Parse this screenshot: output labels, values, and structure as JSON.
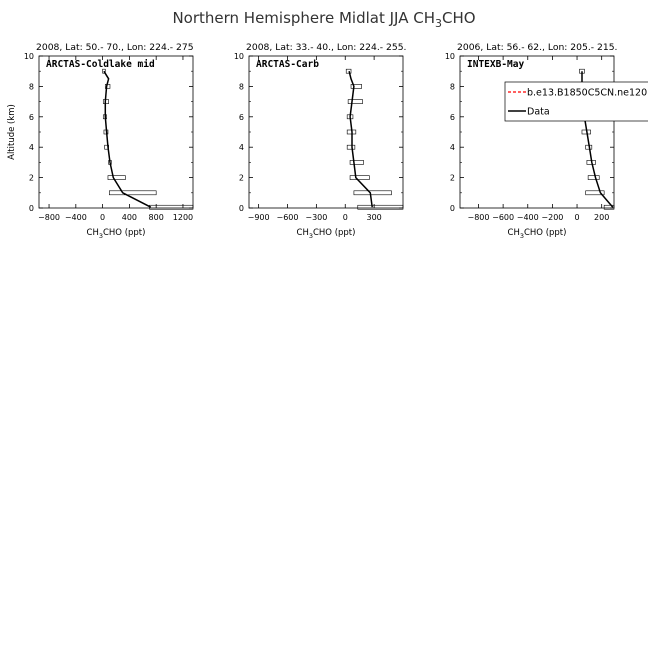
{
  "figure": {
    "title_main": "Northern Hemisphere Midlat JJA CH",
    "title_sub": "3",
    "title_tail": "CHO"
  },
  "legend": {
    "model_label": "b.e13.B1850C5CN.ne120",
    "data_label": "Data",
    "model_color": "#ff0000",
    "data_color": "#000000"
  },
  "chart_data": [
    {
      "type": "line",
      "header": "2008, Lat:  50.- 70., Lon: 224.- 275",
      "label": "ARCTAS-Coldlake mid",
      "ylabel": "Altitude (km)",
      "xlabel_main": "CH",
      "xlabel_sub": "3",
      "xlabel_tail": "CHO (ppt)",
      "xlim": [
        -950,
        1350
      ],
      "ylim": [
        0,
        10
      ],
      "xticks": [
        -800,
        -400,
        0,
        400,
        800,
        1200
      ],
      "xtick_labels": [
        "−800",
        "−400",
        "0",
        "400",
        "800",
        "1200"
      ],
      "yticks": [
        0,
        2,
        4,
        6,
        8,
        10
      ],
      "series": [
        {
          "name": "Data",
          "x": [
            720,
            300,
            160,
            110,
            80,
            60,
            40,
            40,
            60,
            90,
            20
          ],
          "y": [
            0.05,
            1,
            2,
            3,
            4,
            5,
            6,
            7,
            8,
            8.5,
            9
          ]
        }
      ],
      "boxes": [
        {
          "y": 0.05,
          "xmin": 700,
          "xmax": 1350
        },
        {
          "y": 1,
          "xmin": 100,
          "xmax": 800
        },
        {
          "y": 2,
          "xmin": 80,
          "xmax": 340
        },
        {
          "y": 3,
          "xmin": 90,
          "xmax": 130
        },
        {
          "y": 4,
          "xmin": 30,
          "xmax": 90
        },
        {
          "y": 5,
          "xmin": 20,
          "xmax": 80
        },
        {
          "y": 6,
          "xmin": 10,
          "xmax": 60
        },
        {
          "y": 7,
          "xmin": 10,
          "xmax": 90
        },
        {
          "y": 8,
          "xmin": 40,
          "xmax": 110
        },
        {
          "y": 9,
          "xmin": 0,
          "xmax": 40
        }
      ]
    },
    {
      "type": "line",
      "header": "2008, Lat:  33.- 40., Lon: 224.- 255.",
      "label": "ARCTAS-Carb",
      "ylabel": "",
      "xlabel_main": "CH",
      "xlabel_sub": "3",
      "xlabel_tail": "CHO (ppt)",
      "xlim": [
        -1000,
        600
      ],
      "ylim": [
        0,
        10
      ],
      "xticks": [
        -900,
        -600,
        -300,
        0,
        300
      ],
      "xtick_labels": [
        "−900",
        "−600",
        "−300",
        "0",
        "300"
      ],
      "yticks": [
        0,
        2,
        4,
        6,
        8,
        10
      ],
      "series": [
        {
          "name": "Data",
          "x": [
            280,
            260,
            110,
            90,
            70,
            70,
            50,
            70,
            90,
            60,
            40
          ],
          "y": [
            0.05,
            1,
            2,
            3,
            4,
            5,
            6,
            7,
            8,
            8.5,
            9
          ]
        }
      ],
      "boxes": [
        {
          "y": 0.05,
          "xmin": 130,
          "xmax": 600
        },
        {
          "y": 1,
          "xmin": 90,
          "xmax": 480
        },
        {
          "y": 2,
          "xmin": 50,
          "xmax": 250
        },
        {
          "y": 3,
          "xmin": 50,
          "xmax": 190
        },
        {
          "y": 4,
          "xmin": 20,
          "xmax": 100
        },
        {
          "y": 5,
          "xmin": 20,
          "xmax": 110
        },
        {
          "y": 6,
          "xmin": 20,
          "xmax": 80
        },
        {
          "y": 7,
          "xmin": 30,
          "xmax": 180
        },
        {
          "y": 8,
          "xmin": 60,
          "xmax": 170
        },
        {
          "y": 9,
          "xmin": 10,
          "xmax": 60
        }
      ]
    },
    {
      "type": "line",
      "header": "2006, Lat: 56.- 62., Lon: 205.- 215.",
      "label": "INTEXB-May",
      "ylabel": "",
      "xlabel_main": "CH",
      "xlabel_sub": "3",
      "xlabel_tail": "CHO (ppt)",
      "xlim": [
        -950,
        300
      ],
      "ylim": [
        0,
        10
      ],
      "xticks": [
        -800,
        -600,
        -400,
        -200,
        0,
        200
      ],
      "xtick_labels": [
        "−800",
        "−600",
        "−400",
        "−200",
        "0",
        "200"
      ],
      "yticks": [
        0,
        2,
        4,
        6,
        8,
        10
      ],
      "series": [
        {
          "name": "Data",
          "x": [
            290,
            190,
            150,
            120,
            100,
            80,
            60,
            30,
            40,
            40,
            40
          ],
          "y": [
            0.05,
            1,
            2,
            3,
            4,
            5,
            6,
            7,
            8,
            8.5,
            9
          ]
        }
      ],
      "boxes": [
        {
          "y": 0.05,
          "xmin": 220,
          "xmax": 300
        },
        {
          "y": 1,
          "xmin": 70,
          "xmax": 220
        },
        {
          "y": 2,
          "xmin": 90,
          "xmax": 180
        },
        {
          "y": 3,
          "xmin": 80,
          "xmax": 150
        },
        {
          "y": 4,
          "xmin": 70,
          "xmax": 120
        },
        {
          "y": 5,
          "xmin": 40,
          "xmax": 110
        },
        {
          "y": 6,
          "xmin": 30,
          "xmax": 100
        },
        {
          "y": 7,
          "xmin": 10,
          "xmax": 50
        },
        {
          "y": 8,
          "xmin": 20,
          "xmax": 70
        },
        {
          "y": 9,
          "xmin": 20,
          "xmax": 60
        }
      ]
    }
  ]
}
